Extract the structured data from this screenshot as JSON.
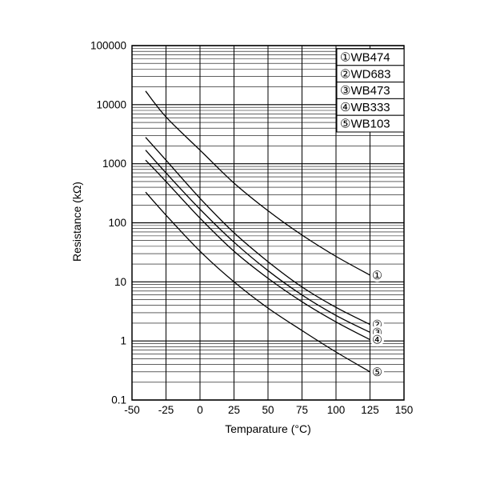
{
  "chart_data": {
    "type": "line",
    "title": "",
    "xlabel": "Temparature (°C)",
    "ylabel": "Resistance (kΩ)",
    "xlim": [
      -50,
      150
    ],
    "x_ticks": [
      -50,
      -25,
      0,
      25,
      50,
      75,
      100,
      125,
      150
    ],
    "x_tick_labels": [
      "-50",
      "-25",
      "0",
      "25",
      "50",
      "75",
      "100",
      "125",
      "150"
    ],
    "y_scale": "log",
    "ylim": [
      0.1,
      100000
    ],
    "y_ticks": [
      0.1,
      1,
      10,
      100,
      1000,
      10000,
      100000
    ],
    "y_tick_labels": [
      "0.1",
      "1",
      "10",
      "100",
      "1000",
      "10000",
      "100000"
    ],
    "grid": "log major + minor horizontal, 25°C vertical",
    "legend_position": "top-right-inside",
    "series": [
      {
        "marker": "①",
        "name": "WB474",
        "legend": "①WB474",
        "x": [
          -40,
          -25,
          0,
          25,
          50,
          75,
          100,
          125
        ],
        "values": [
          17000,
          6200,
          1700,
          470,
          160,
          62,
          27,
          13
        ]
      },
      {
        "marker": "②",
        "name": "WD683",
        "legend": "②WD683",
        "x": [
          -40,
          -25,
          0,
          25,
          50,
          75,
          100,
          125
        ],
        "values": [
          2800,
          1150,
          260,
          68,
          22,
          8.2,
          3.7,
          1.9
        ]
      },
      {
        "marker": "③",
        "name": "WB473",
        "legend": "③WB473",
        "x": [
          -40,
          -25,
          0,
          25,
          50,
          75,
          100,
          125
        ],
        "values": [
          1700,
          700,
          170,
          47,
          15.5,
          6.0,
          2.7,
          1.4
        ]
      },
      {
        "marker": "④",
        "name": "WB333",
        "legend": "④WB333",
        "x": [
          -40,
          -25,
          0,
          25,
          50,
          75,
          100,
          125
        ],
        "values": [
          1150,
          500,
          120,
          33,
          11.5,
          4.6,
          2.1,
          1.05
        ]
      },
      {
        "marker": "⑤",
        "name": "WB103",
        "legend": "⑤WB103",
        "x": [
          -40,
          -25,
          0,
          25,
          50,
          75,
          100,
          125
        ],
        "values": [
          330,
          135,
          33,
          10,
          3.6,
          1.5,
          0.65,
          0.3
        ]
      }
    ]
  }
}
